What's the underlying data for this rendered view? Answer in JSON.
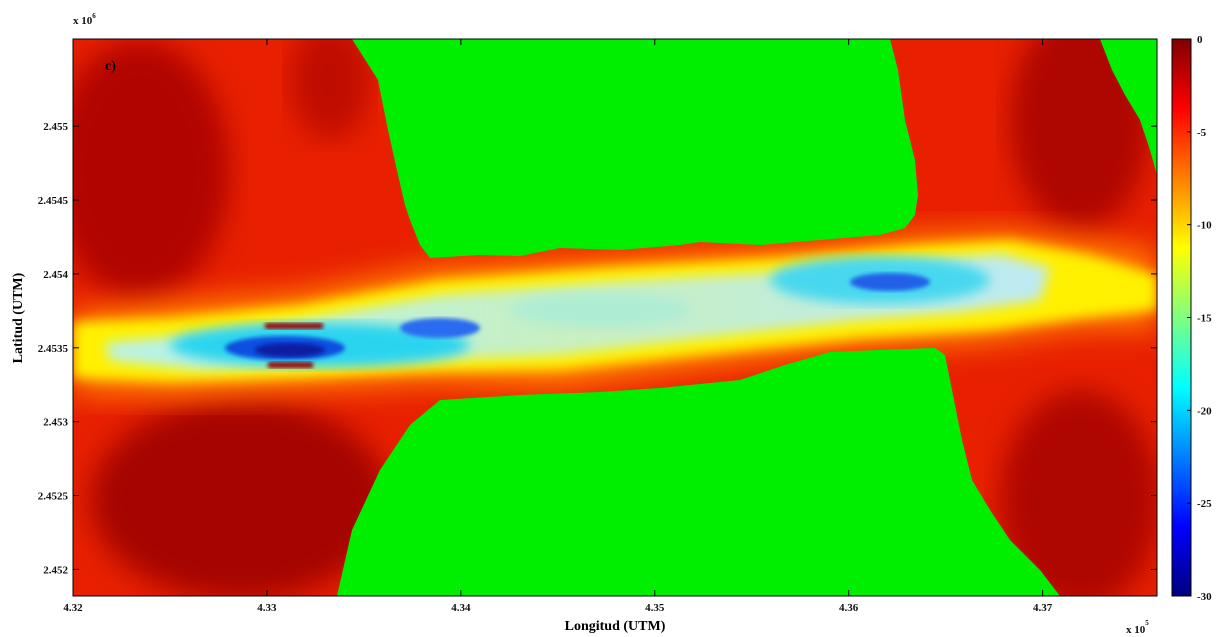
{
  "chart_data": {
    "type": "heatmap",
    "panel_label": "c)",
    "xlabel": "Longitud (UTM)",
    "ylabel": "Latitud (UTM)",
    "x_multiplier": "x 10",
    "x_exponent": "5",
    "y_multiplier": "x 10",
    "y_exponent": "6",
    "xlim": [
      4.32,
      4.3759
    ],
    "ylim": [
      2.45182,
      2.45559
    ],
    "x_ticks": [
      4.32,
      4.33,
      4.34,
      4.35,
      4.36,
      4.37
    ],
    "x_tick_labels": [
      "4.32",
      "4.33",
      "4.34",
      "4.35",
      "4.36",
      "4.37"
    ],
    "y_ticks": [
      2.452,
      2.4525,
      2.453,
      2.4535,
      2.454,
      2.4545,
      2.455
    ],
    "y_tick_labels": [
      "2.452",
      "2.4525",
      "2.453",
      "2.4535",
      "2.454",
      "2.4545",
      "2.455"
    ],
    "colorbar": {
      "range": [
        -30,
        0
      ],
      "ticks": [
        0,
        -5,
        -10,
        -15,
        -20,
        -25,
        -30
      ],
      "tick_labels": [
        "0",
        "-5",
        "-10",
        "-15",
        "-20",
        "-25",
        "-30"
      ]
    },
    "land_color": "#00ee00",
    "grid": false,
    "legend": "none"
  }
}
